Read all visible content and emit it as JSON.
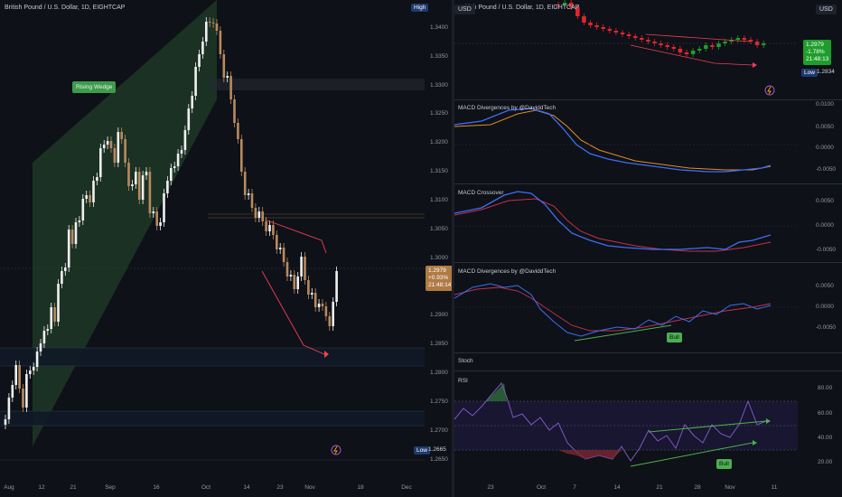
{
  "left": {
    "title": "British Pound / U.S. Dollar, 1D, EIGHTCAP",
    "high_label": "High",
    "low_label": "Low",
    "low_value": "1.2665",
    "wedge_label": "Rising Wedge",
    "y_ticks": [
      "1.3400",
      "1.3350",
      "1.3300",
      "1.3250",
      "1.3200",
      "1.3150",
      "1.3100",
      "1.3050",
      "1.3000",
      "1.2900",
      "1.2850",
      "1.2800",
      "1.2750",
      "1.2700",
      "1.2650"
    ],
    "price_box": {
      "price": "1.2979",
      "change": "+0.93%",
      "time": "21:48:14"
    },
    "x_ticks": [
      "Aug",
      "12",
      "21",
      "Sep",
      "16",
      "Oct",
      "14",
      "23",
      "Nov",
      "18",
      "Dec"
    ],
    "colors": {
      "up": "#f0f0f0",
      "down": "#b98a5e",
      "wedge": "#1f3a27",
      "arrow": "#f23f55"
    }
  },
  "right": {
    "title": "British Pound / U.S. Dollar, 1D, EIGHTCAP",
    "currency": "USD",
    "price_box": {
      "price": "1.2979",
      "change": "-1.78%",
      "time": "21:48:13"
    },
    "low_label": "Low",
    "low_value": "1.2834",
    "panels": [
      {
        "name": "MACD Divergences by @DaviddTech",
        "ticks": [
          "0.0100",
          "0.0050",
          "0.0000",
          "-0.0050"
        ]
      },
      {
        "name": "MACD Crossover",
        "ticks": [
          "0.0050",
          "0.0000",
          "-0.0050"
        ]
      },
      {
        "name": "MACD Divergences by @DaviddTech",
        "ticks": [
          "0.0050",
          "0.0000",
          "-0.0050"
        ],
        "tag": "Bull"
      },
      {
        "name": "Stoch",
        "ticks": []
      },
      {
        "name": "RSI",
        "ticks": [
          "80.00",
          "60.00",
          "40.00",
          "20.00"
        ],
        "tag": "Bull"
      }
    ],
    "x_ticks": [
      "23",
      "Oct",
      "7",
      "14",
      "21",
      "28",
      "Nov",
      "11"
    ],
    "colors": {
      "up": "#1f9d2c",
      "down": "#e0262e",
      "macd": "#3d6ef5",
      "signal": "#e08a2d",
      "rsi": "#7e57c2"
    }
  }
}
